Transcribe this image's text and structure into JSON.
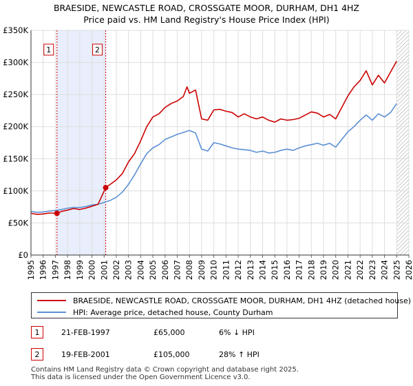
{
  "chart_data": {
    "type": "line",
    "title": "BRAESIDE, NEWCASTLE ROAD, CROSSGATE MOOR, DURHAM, DH1 4HZ",
    "subtitle": "Price paid vs. HM Land Registry's House Price Index (HPI)",
    "xlim": [
      1995,
      2026
    ],
    "ylim": [
      0,
      350000
    ],
    "x_ticks": [
      1995,
      1996,
      1997,
      1998,
      1999,
      2000,
      2001,
      2002,
      2003,
      2004,
      2005,
      2006,
      2007,
      2008,
      2009,
      2010,
      2011,
      2012,
      2013,
      2014,
      2015,
      2016,
      2017,
      2018,
      2019,
      2020,
      2021,
      2022,
      2023,
      2024,
      2025,
      2026
    ],
    "y_ticks": [
      {
        "value": 0,
        "label": "£0"
      },
      {
        "value": 50000,
        "label": "£50K"
      },
      {
        "value": 100000,
        "label": "£100K"
      },
      {
        "value": 150000,
        "label": "£150K"
      },
      {
        "value": 200000,
        "label": "£200K"
      },
      {
        "value": 250000,
        "label": "£250K"
      },
      {
        "value": 300000,
        "label": "£300K"
      },
      {
        "value": 350000,
        "label": "£350K"
      }
    ],
    "shaded_span": [
      1997.13,
      2001.13
    ],
    "future_hatch_from": 2025.0,
    "series": [
      {
        "name": "BRAESIDE, NEWCASTLE ROAD, CROSSGATE MOOR, DURHAM, DH1 4HZ (detached house)",
        "color": "#cc0000",
        "x": [
          1995.0,
          1995.5,
          1996.0,
          1996.5,
          1997.13,
          1997.5,
          1998.0,
          1998.5,
          1999.0,
          1999.5,
          2000.0,
          2000.5,
          2001.13,
          2001.5,
          2002.0,
          2002.5,
          2003.0,
          2003.5,
          2004.0,
          2004.5,
          2005.0,
          2005.5,
          2006.0,
          2006.5,
          2007.0,
          2007.5,
          2007.8,
          2008.0,
          2008.5,
          2009.0,
          2009.5,
          2010.0,
          2010.5,
          2011.0,
          2011.5,
          2012.0,
          2012.5,
          2013.0,
          2013.5,
          2014.0,
          2014.5,
          2015.0,
          2015.5,
          2016.0,
          2016.5,
          2017.0,
          2017.5,
          2018.0,
          2018.5,
          2019.0,
          2019.5,
          2020.0,
          2020.5,
          2021.0,
          2021.5,
          2022.0,
          2022.5,
          2023.0,
          2023.5,
          2024.0,
          2024.5,
          2025.0
        ],
        "values": [
          65000,
          63500,
          64000,
          65500,
          65000,
          68000,
          70000,
          72500,
          71000,
          73000,
          76000,
          79000,
          105000,
          110000,
          117000,
          127000,
          145000,
          158000,
          178000,
          200000,
          215000,
          220000,
          230000,
          236000,
          240000,
          247000,
          262000,
          252000,
          257000,
          212000,
          210000,
          226000,
          227000,
          224000,
          222000,
          215000,
          220000,
          215000,
          212000,
          215000,
          210000,
          207000,
          212000,
          210000,
          211000,
          213000,
          218000,
          223000,
          221000,
          215000,
          219000,
          212000,
          230000,
          248000,
          262000,
          272000,
          287000,
          265000,
          280000,
          268000,
          285000,
          302000
        ]
      },
      {
        "name": "HPI: Average price, detached house, County Durham",
        "color": "#5b8fd4",
        "x": [
          1995.0,
          1995.5,
          1996.0,
          1996.5,
          1997.0,
          1997.5,
          1998.0,
          1998.5,
          1999.0,
          1999.5,
          2000.0,
          2000.5,
          2001.0,
          2001.5,
          2002.0,
          2002.5,
          2003.0,
          2003.5,
          2004.0,
          2004.5,
          2005.0,
          2005.5,
          2006.0,
          2006.5,
          2007.0,
          2007.5,
          2008.0,
          2008.5,
          2009.0,
          2009.5,
          2010.0,
          2010.5,
          2011.0,
          2011.5,
          2012.0,
          2012.5,
          2013.0,
          2013.5,
          2014.0,
          2014.5,
          2015.0,
          2015.5,
          2016.0,
          2016.5,
          2017.0,
          2017.5,
          2018.0,
          2018.5,
          2019.0,
          2019.5,
          2020.0,
          2020.5,
          2021.0,
          2021.5,
          2022.0,
          2022.5,
          2023.0,
          2023.5,
          2024.0,
          2024.5,
          2025.0
        ],
        "values": [
          68000,
          66500,
          67000,
          68500,
          69500,
          71000,
          73000,
          74000,
          74000,
          75500,
          78000,
          79000,
          82000,
          85000,
          90000,
          98000,
          110000,
          125000,
          142000,
          158000,
          167000,
          172000,
          180000,
          184000,
          188000,
          191000,
          194000,
          190000,
          165000,
          162000,
          175000,
          173000,
          170000,
          167000,
          165000,
          164000,
          163000,
          160000,
          162000,
          159000,
          160000,
          163000,
          165000,
          163000,
          167000,
          170000,
          172000,
          174000,
          171000,
          174000,
          168000,
          180000,
          192000,
          200000,
          210000,
          218000,
          210000,
          220000,
          215000,
          222000,
          236000
        ]
      }
    ],
    "annotations": [
      {
        "label": "1",
        "x": 1997.13,
        "value": 65000
      },
      {
        "label": "2",
        "x": 2001.13,
        "value": 105000
      }
    ]
  },
  "legend": {
    "items": [
      {
        "label": "BRAESIDE, NEWCASTLE ROAD, CROSSGATE MOOR, DURHAM, DH1 4HZ (detached house)",
        "color": "#cc0000"
      },
      {
        "label": "HPI: Average price, detached house, County Durham",
        "color": "#5b8fd4"
      }
    ]
  },
  "transactions": [
    {
      "num": "1",
      "date": "21-FEB-1997",
      "price": "£65,000",
      "hpi": "6% ↓ HPI"
    },
    {
      "num": "2",
      "date": "19-FEB-2001",
      "price": "£105,000",
      "hpi": "28% ↑ HPI"
    }
  ],
  "footer": {
    "line1": "Contains HM Land Registry data © Crown copyright and database right 2025.",
    "line2": "This data is licensed under the Open Government Licence v3.0."
  }
}
